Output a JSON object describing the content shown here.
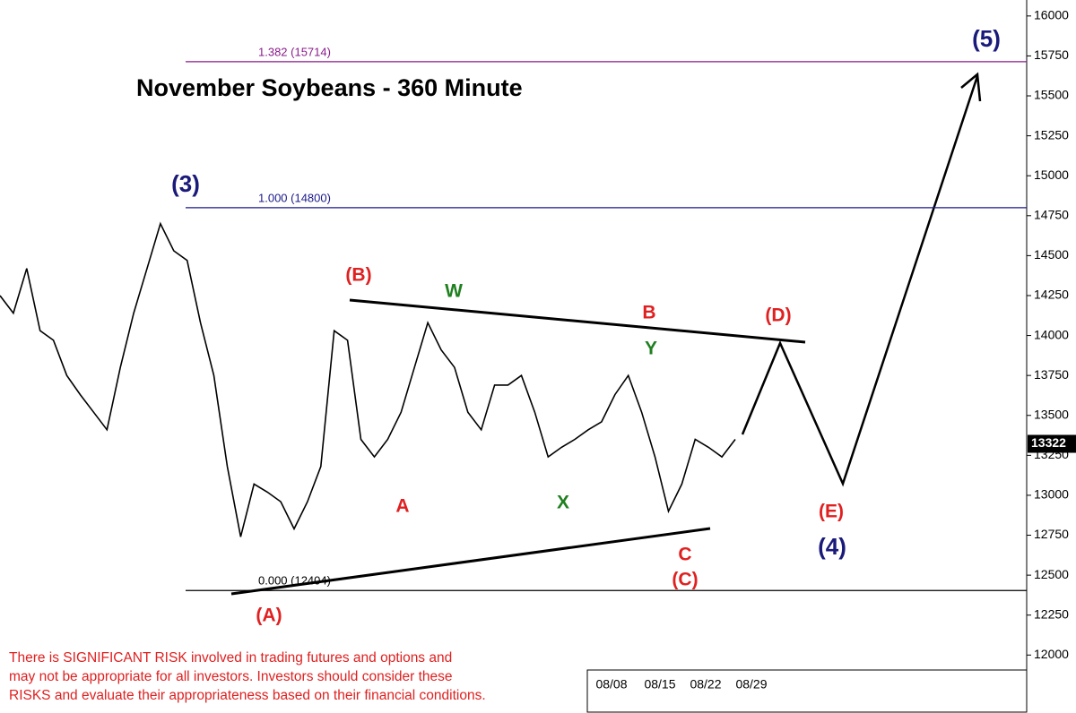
{
  "chart_data": {
    "type": "line",
    "title": "November Soybeans - 360 Minute",
    "series": [
      {
        "name": "November Soybeans",
        "color": "#000000",
        "values": [
          14250,
          14140,
          14420,
          14030,
          13970,
          13750,
          13630,
          13520,
          13410,
          13800,
          14140,
          14420,
          14700,
          14530,
          14470,
          14080,
          13750,
          13180,
          12740,
          13070,
          13020,
          12960,
          12790,
          12960,
          13180,
          14030,
          13970,
          13350,
          13240,
          13350,
          13520,
          13800,
          14080,
          13910,
          13800,
          13520,
          13410,
          13690,
          13690,
          13750,
          13520,
          13240,
          13300,
          13350,
          13410,
          13460,
          13630,
          13750,
          13520,
          13240,
          12900,
          13070,
          13350,
          13300,
          13240,
          13350
        ]
      }
    ],
    "ylim": [
      11940,
      16100
    ],
    "yticks": [
      12000,
      12250,
      12500,
      12750,
      13000,
      13250,
      13500,
      13750,
      14000,
      14250,
      14500,
      14750,
      15000,
      15250,
      15500,
      15750,
      16000
    ],
    "last_price": 13322,
    "levels": [
      {
        "value": 15714,
        "label": "1.382 (15714)",
        "color": "#8b1a8b"
      },
      {
        "value": 14800,
        "label": "1.000 (14800)",
        "color": "#1a1a8b"
      },
      {
        "value": 12404,
        "label": "0.000 (12404)",
        "color": "#000000"
      }
    ],
    "x_labels": [
      "08/08",
      "08/15",
      "08/22",
      "08/29"
    ],
    "wave_labels": [
      {
        "text": "(5)",
        "color": "#1a1a7a"
      },
      {
        "text": "(3)",
        "color": "#1a1a7a"
      },
      {
        "text": "(B)",
        "color": "#e02020"
      },
      {
        "text": "W",
        "color": "#208020"
      },
      {
        "text": "B",
        "color": "#e02020"
      },
      {
        "text": "(D)",
        "color": "#e02020"
      },
      {
        "text": "Y",
        "color": "#208020"
      },
      {
        "text": "A",
        "color": "#e02020"
      },
      {
        "text": "X",
        "color": "#208020"
      },
      {
        "text": "C",
        "color": "#e02020"
      },
      {
        "text": "(C)",
        "color": "#e02020"
      },
      {
        "text": "(E)",
        "color": "#e02020"
      },
      {
        "text": "(4)",
        "color": "#1a1a7a"
      },
      {
        "text": "(A)",
        "color": "#e02020"
      }
    ],
    "disclaimer": [
      "There is SIGNIFICANT RISK involved in trading futures and options and",
      "may not be appropriate for all investors.  Investors should consider these",
      "RISKS and evaluate their appropriateness based on their financial conditions."
    ]
  }
}
